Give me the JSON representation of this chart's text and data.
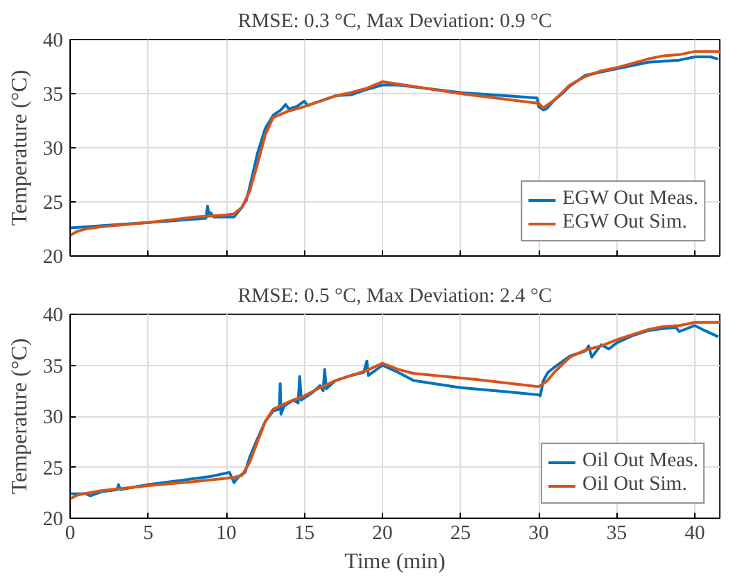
{
  "chart_data": [
    {
      "type": "line",
      "title": "RMSE: 0.3 °C, Max Deviation: 0.9 °C",
      "ylabel": "Temperature (°C)",
      "xlim": [
        0,
        41.6
      ],
      "xticks": [
        0,
        5,
        10,
        15,
        20,
        25,
        30,
        35,
        40
      ],
      "ylim": [
        20,
        40
      ],
      "yticks": [
        20,
        25,
        30,
        35,
        40
      ],
      "grid": true,
      "legend": "bottom right",
      "tick_labels": "y",
      "series": [
        {
          "name": "EGW Out Meas.",
          "color": "#0072bd",
          "x": [
            0,
            1,
            3,
            5,
            7,
            8.7,
            8.8,
            8.9,
            9,
            9.2,
            10.5,
            11,
            11.3,
            11.6,
            12,
            12.5,
            13,
            13.5,
            13.8,
            14,
            14.5,
            15,
            15.2,
            16,
            17,
            18,
            19,
            20,
            21,
            25,
            29.9,
            30,
            30.3,
            30.5,
            31,
            31.5,
            32,
            33,
            34,
            35,
            36,
            37,
            38,
            39,
            40,
            41,
            41.5
          ],
          "values": [
            22.6,
            22.7,
            22.9,
            23.1,
            23.3,
            23.5,
            24.6,
            23.7,
            24.0,
            23.6,
            23.6,
            24.5,
            25.2,
            27,
            29.5,
            31.8,
            33.0,
            33.5,
            34.0,
            33.6,
            33.8,
            34.3,
            33.9,
            34.3,
            34.8,
            34.9,
            35.4,
            35.8,
            35.8,
            35.1,
            34.6,
            33.8,
            33.5,
            33.6,
            34.4,
            35.0,
            35.7,
            36.7,
            37.0,
            37.3,
            37.6,
            37.9,
            38.0,
            38.1,
            38.4,
            38.4,
            38.2
          ]
        },
        {
          "name": "EGW Out Sim.",
          "color": "#d95319",
          "x": [
            0,
            0.5,
            1,
            2,
            5,
            8,
            10,
            10.5,
            11,
            11.5,
            12,
            12.5,
            13,
            14,
            15,
            16,
            17,
            18,
            19,
            20,
            25,
            30,
            30.3,
            31,
            31.5,
            32,
            33,
            34,
            35,
            36,
            37,
            38,
            39,
            40,
            41.6
          ],
          "values": [
            21.9,
            22.3,
            22.5,
            22.7,
            23.1,
            23.6,
            23.8,
            23.9,
            24.5,
            26,
            28.5,
            31.2,
            32.8,
            33.4,
            33.8,
            34.3,
            34.8,
            35.1,
            35.5,
            36.1,
            35.0,
            34.1,
            33.7,
            34.4,
            35.1,
            35.8,
            36.6,
            37.1,
            37.4,
            37.8,
            38.2,
            38.5,
            38.6,
            38.9,
            38.9
          ]
        }
      ]
    },
    {
      "type": "line",
      "title": "RMSE: 0.5 °C, Max Deviation: 2.4 °C",
      "xlabel": "Time (min)",
      "ylabel": "Temperature (°C)",
      "xlim": [
        0,
        41.6
      ],
      "xticks": [
        0,
        5,
        10,
        15,
        20,
        25,
        30,
        35,
        40
      ],
      "ylim": [
        20,
        40
      ],
      "yticks": [
        20,
        25,
        30,
        35,
        40
      ],
      "grid": true,
      "legend": "bottom right",
      "series": [
        {
          "name": "Oil Out Meas.",
          "color": "#0072bd",
          "x": [
            0,
            1,
            1.3,
            2,
            3,
            3.1,
            3.2,
            5,
            7,
            9,
            10.2,
            10.5,
            10.8,
            11.2,
            11.5,
            12,
            12.5,
            13,
            13.4,
            13.45,
            13.5,
            13.7,
            14.3,
            14.6,
            14.7,
            14.8,
            15.5,
            16,
            16.2,
            16.3,
            16.4,
            17,
            18,
            18.8,
            19,
            19.1,
            20,
            21,
            22,
            25,
            28,
            30,
            30.1,
            30.3,
            30.6,
            31,
            32,
            33,
            33.2,
            33.4,
            34,
            34.5,
            35,
            36,
            37,
            38,
            38.8,
            39,
            40,
            40.5,
            41.5
          ],
          "values": [
            22.4,
            22.4,
            22.2,
            22.6,
            22.8,
            23.3,
            22.8,
            23.3,
            23.7,
            24.1,
            24.5,
            23.5,
            24.1,
            24.5,
            26,
            27.8,
            29.5,
            30.5,
            30.7,
            33.2,
            30.2,
            31,
            31.6,
            31.3,
            33.9,
            31.6,
            32.3,
            33.0,
            32.5,
            34.6,
            32.7,
            33.5,
            34,
            34.3,
            35.4,
            34,
            35,
            34.3,
            33.5,
            32.8,
            32.4,
            32.1,
            32.0,
            33.5,
            34.3,
            34.8,
            35.9,
            36.4,
            36.9,
            35.8,
            37,
            36.6,
            37.2,
            37.9,
            38.4,
            38.6,
            38.7,
            38.3,
            38.9,
            38.5,
            37.8
          ]
        },
        {
          "name": "Oil Out Sim.",
          "color": "#d95319",
          "x": [
            0,
            0.5,
            2,
            5,
            8,
            10.5,
            11,
            11.5,
            12,
            12.5,
            13,
            14,
            15,
            16,
            17,
            18,
            19,
            20,
            21,
            22,
            26,
            30,
            30.5,
            31,
            32,
            33,
            34,
            35,
            36,
            37,
            38,
            39,
            40,
            41.6
          ],
          "values": [
            21.9,
            22.3,
            22.7,
            23.2,
            23.6,
            24.0,
            24.2,
            25.5,
            27.5,
            29.5,
            30.7,
            31.4,
            32.0,
            32.8,
            33.5,
            34.0,
            34.5,
            35.2,
            34.6,
            34.2,
            33.6,
            32.9,
            33.4,
            34.3,
            35.8,
            36.5,
            36.9,
            37.5,
            38.0,
            38.5,
            38.8,
            38.9,
            39.2,
            39.2
          ]
        }
      ]
    }
  ]
}
